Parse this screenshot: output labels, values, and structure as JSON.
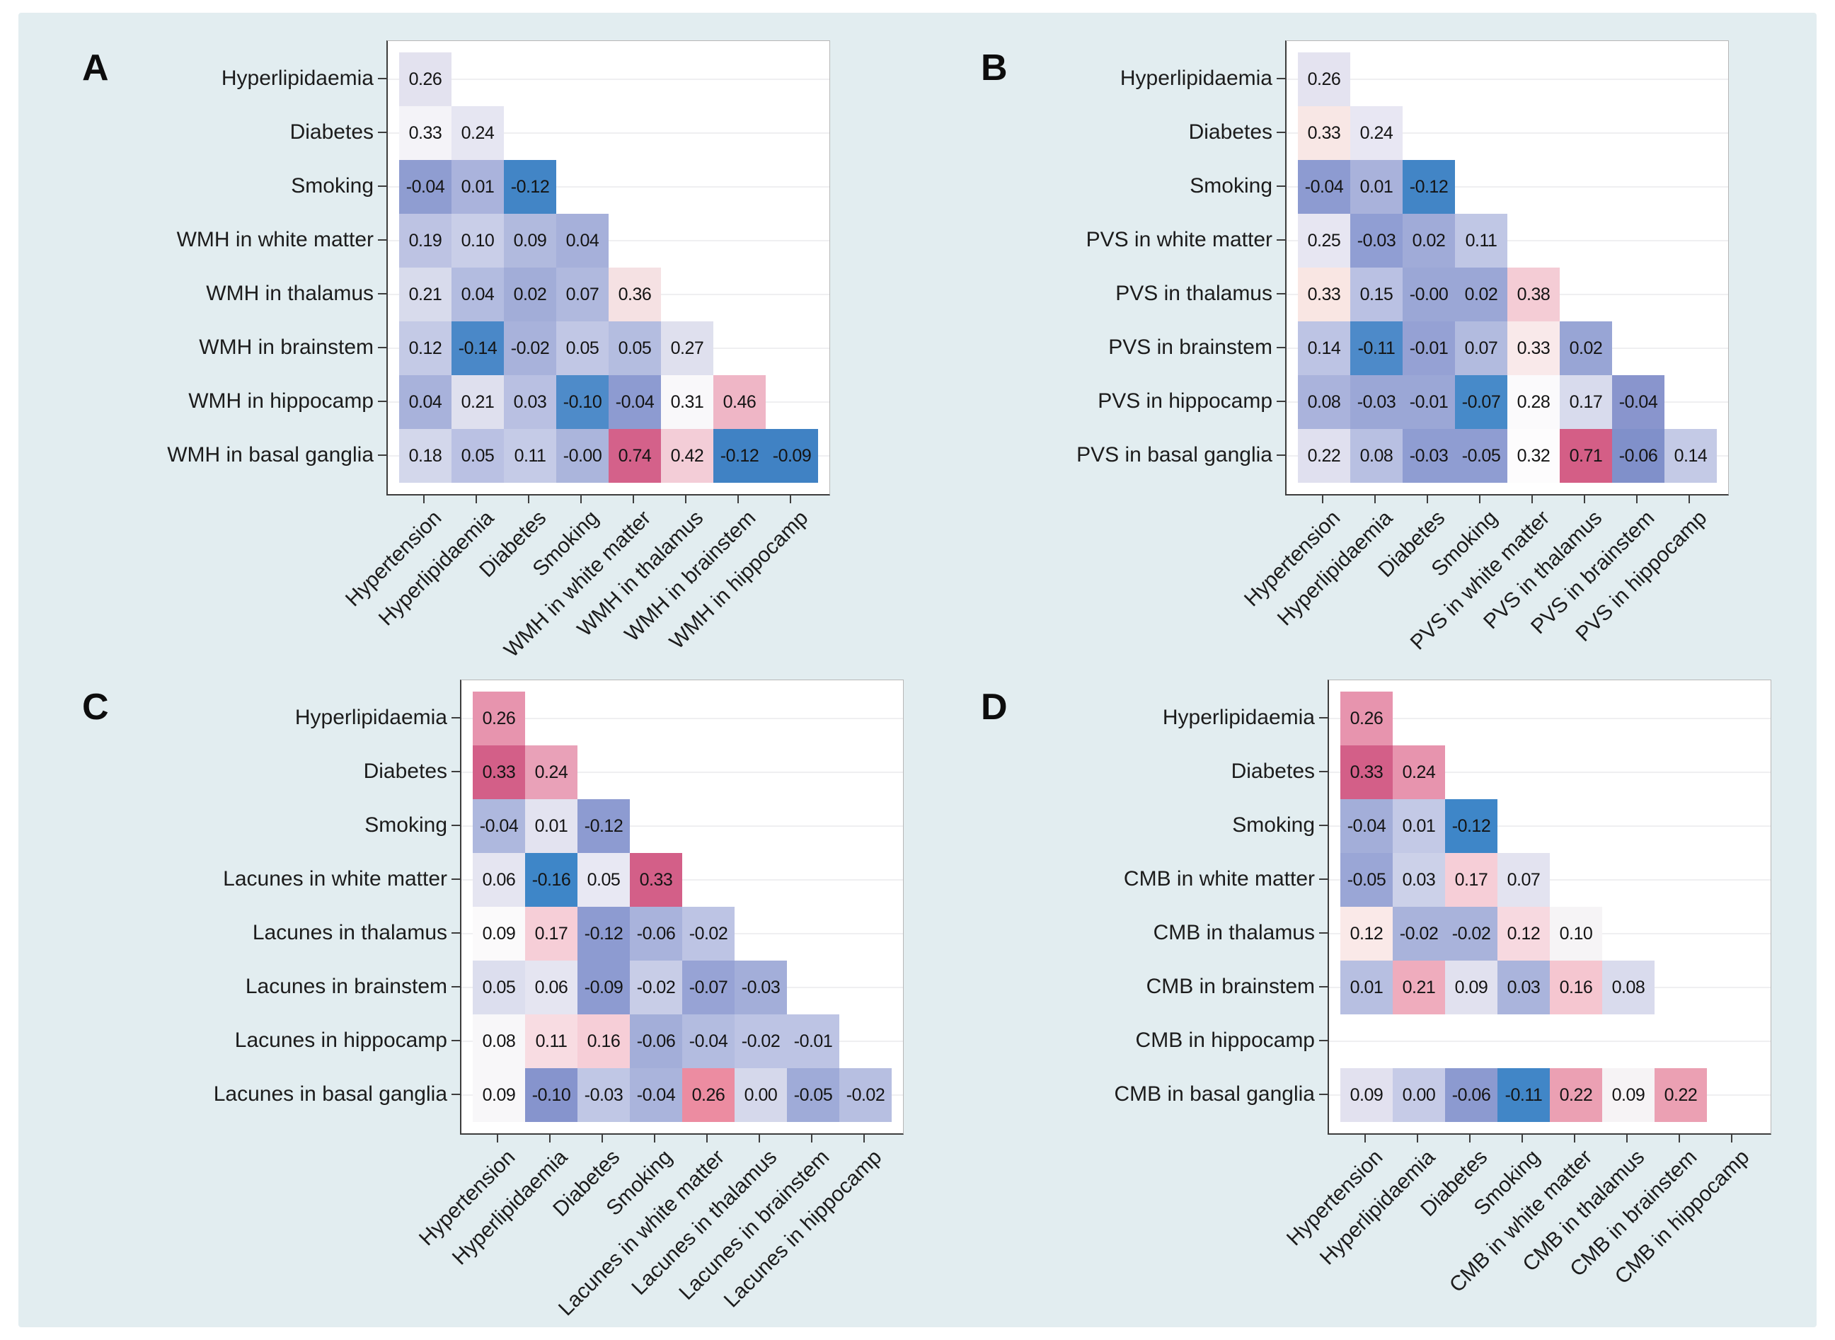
{
  "figure": {
    "background_color": "#e2edf0",
    "plot_background": "#ffffff",
    "axis_color": "#3d3d3d",
    "grid_color": "#efeff1",
    "value_text_color": "#141414",
    "negative_strong_color": "#4285c6",
    "positive_strong_color": "#d35f88"
  },
  "chart_data": [
    {
      "type": "heatmap",
      "panel": "A",
      "measure": "WMH",
      "row_labels": [
        "Hyperlipidaemia",
        "Diabetes",
        "Smoking",
        "WMH in white matter",
        "WMH in thalamus",
        "WMH in brainstem",
        "WMH in hippocamp",
        "WMH in basal ganglia"
      ],
      "col_labels": [
        "Hypertension",
        "Hyperlipidaemia",
        "Diabetes",
        "Smoking",
        "WMH in white matter",
        "WMH in thalamus",
        "WMH in brainstem",
        "WMH in hippocamp"
      ],
      "cells": [
        [
          [
            "0.26",
            "#e3e2ef"
          ]
        ],
        [
          [
            "0.33",
            "#f4f3f8"
          ],
          [
            "0.24",
            "#e6e6f2"
          ]
        ],
        [
          [
            "-0.04",
            "#8f9dd1"
          ],
          [
            "0.01",
            "#aab3dc"
          ],
          [
            "-0.12",
            "#4285c6"
          ]
        ],
        [
          [
            "0.19",
            "#bdc3e3"
          ],
          [
            "0.10",
            "#c9cee8"
          ],
          [
            "0.09",
            "#b1bade"
          ],
          [
            "0.04",
            "#a6b0da"
          ]
        ],
        [
          [
            "0.21",
            "#d8dbec"
          ],
          [
            "0.04",
            "#b3bce0"
          ],
          [
            "0.02",
            "#a2add8"
          ],
          [
            "0.07",
            "#b0b9de"
          ],
          [
            "0.36",
            "#f5e1e3"
          ]
        ],
        [
          [
            "0.12",
            "#c4cae6"
          ],
          [
            "-0.14",
            "#4a88c8"
          ],
          [
            "-0.02",
            "#a8b2db"
          ],
          [
            "0.05",
            "#c1c7e5"
          ],
          [
            "0.05",
            "#b4bde0"
          ],
          [
            "0.27",
            "#dfe0ee"
          ]
        ],
        [
          [
            "0.04",
            "#a8b2db"
          ],
          [
            "0.21",
            "#dfe0ee"
          ],
          [
            "0.03",
            "#b9c0e2"
          ],
          [
            "-0.10",
            "#4e8bc9"
          ],
          [
            "-0.04",
            "#8d9bd1"
          ],
          [
            "0.31",
            "#f9f8fa"
          ],
          [
            "0.46",
            "#efb6c6"
          ]
        ],
        [
          [
            "0.18",
            "#d3d7eb"
          ],
          [
            "0.05",
            "#bac1e3"
          ],
          [
            "0.11",
            "#c5cbe7"
          ],
          [
            "-0.00",
            "#abb5dc"
          ],
          [
            "0.74",
            "#d4618a"
          ],
          [
            "0.42",
            "#f3cdd7"
          ],
          [
            "-0.12",
            "#4082c4"
          ],
          [
            "-0.09",
            "#4082c4"
          ]
        ]
      ]
    },
    {
      "type": "heatmap",
      "panel": "B",
      "measure": "PVS",
      "row_labels": [
        "Hyperlipidaemia",
        "Diabetes",
        "Smoking",
        "PVS in white matter",
        "PVS in thalamus",
        "PVS in brainstem",
        "PVS in hippocamp",
        "PVS in basal ganglia"
      ],
      "col_labels": [
        "Hypertension",
        "Hyperlipidaemia",
        "Diabetes",
        "Smoking",
        "PVS in white matter",
        "PVS in thalamus",
        "PVS in brainstem",
        "PVS in hippocamp"
      ],
      "cells": [
        [
          [
            "0.26",
            "#e4e3f0"
          ]
        ],
        [
          [
            "0.33",
            "#f8e7e5"
          ],
          [
            "0.24",
            "#e8e7f3"
          ]
        ],
        [
          [
            "-0.04",
            "#8d9bd1"
          ],
          [
            "0.01",
            "#a9b2db"
          ],
          [
            "-0.12",
            "#4285c6"
          ]
        ],
        [
          [
            "0.25",
            "#e7e6f2"
          ],
          [
            "-0.03",
            "#909ed3"
          ],
          [
            "0.02",
            "#a0abd8"
          ],
          [
            "0.11",
            "#c0c7e5"
          ]
        ],
        [
          [
            "0.33",
            "#f9e6e3"
          ],
          [
            "0.15",
            "#bac1e3"
          ],
          [
            "-0.00",
            "#9ba7d6"
          ],
          [
            "0.02",
            "#9ba7d6"
          ],
          [
            "0.38",
            "#f4ccd5"
          ]
        ],
        [
          [
            "0.14",
            "#bdc4e4"
          ],
          [
            "-0.11",
            "#4d8ac9"
          ],
          [
            "-0.01",
            "#95a1d4"
          ],
          [
            "0.07",
            "#b2bbdf"
          ],
          [
            "0.33",
            "#f9e9ea"
          ],
          [
            "0.02",
            "#98a5d5"
          ]
        ],
        [
          [
            "0.08",
            "#aab3dc"
          ],
          [
            "-0.03",
            "#9ba7d6"
          ],
          [
            "-0.01",
            "#9ba7d6"
          ],
          [
            "-0.07",
            "#478ac9"
          ],
          [
            "0.28",
            "#fbfafc"
          ],
          [
            "0.17",
            "#d8dbed"
          ],
          [
            "-0.04",
            "#8995cd"
          ]
        ],
        [
          [
            "0.22",
            "#e0e0ef"
          ],
          [
            "0.08",
            "#b8c0e2"
          ],
          [
            "-0.03",
            "#8f9dd2"
          ],
          [
            "-0.05",
            "#8f9dd2"
          ],
          [
            "0.32",
            "#fdfcfd"
          ],
          [
            "0.71",
            "#d45e86"
          ],
          [
            "-0.06",
            "#8090ca"
          ],
          [
            "0.14",
            "#c4cae6"
          ]
        ]
      ]
    },
    {
      "type": "heatmap",
      "panel": "C",
      "measure": "Lacunes",
      "row_labels": [
        "Hyperlipidaemia",
        "Diabetes",
        "Smoking",
        "Lacunes in white matter",
        "Lacunes in thalamus",
        "Lacunes in brainstem",
        "Lacunes in hippocamp",
        "Lacunes in basal ganglia"
      ],
      "col_labels": [
        "Hypertension",
        "Hyperlipidaemia",
        "Diabetes",
        "Smoking",
        "Lacunes in white matter",
        "Lacunes in thalamus",
        "Lacunes in brainstem",
        "Lacunes in hippocamp"
      ],
      "cells": [
        [
          [
            "0.26",
            "#e794ae"
          ]
        ],
        [
          [
            "0.33",
            "#d35f88"
          ],
          [
            "0.24",
            "#e9a1b8"
          ]
        ],
        [
          [
            "-0.04",
            "#aeb8de"
          ],
          [
            "0.01",
            "#e3e3f0"
          ],
          [
            "-0.12",
            "#8d9bd1"
          ]
        ],
        [
          [
            "0.06",
            "#e5e5f1"
          ],
          [
            "-0.16",
            "#3e86c8"
          ],
          [
            "0.05",
            "#e8e8f3"
          ],
          [
            "0.33",
            "#d35f88"
          ]
        ],
        [
          [
            "0.09",
            "#fbfafb"
          ],
          [
            "0.17",
            "#f6ced7"
          ],
          [
            "-0.12",
            "#8d9bd1"
          ],
          [
            "-0.06",
            "#a9b3dc"
          ],
          [
            "-0.02",
            "#bdc4e4"
          ]
        ],
        [
          [
            "0.05",
            "#dcdeee"
          ],
          [
            "0.06",
            "#e5e5f1"
          ],
          [
            "-0.09",
            "#8d9bd1"
          ],
          [
            "-0.02",
            "#c8cde7"
          ],
          [
            "-0.07",
            "#97a3d5"
          ],
          [
            "-0.03",
            "#a3aed9"
          ]
        ],
        [
          [
            "0.08",
            "#f8f7f9"
          ],
          [
            "0.11",
            "#f8dce2"
          ],
          [
            "0.16",
            "#f6ced7"
          ],
          [
            "-0.06",
            "#a3aed9"
          ],
          [
            "-0.04",
            "#b3bce0"
          ],
          [
            "-0.02",
            "#bdc4e4"
          ],
          [
            "-0.01",
            "#bdc4e4"
          ]
        ],
        [
          [
            "0.09",
            "#f8f7f9"
          ],
          [
            "-0.10",
            "#8694cd"
          ],
          [
            "-0.03",
            "#c0c7e5"
          ],
          [
            "-0.04",
            "#aab4dc"
          ],
          [
            "0.26",
            "#ec8ca1"
          ],
          [
            "0.00",
            "#d5d8eb"
          ],
          [
            "-0.05",
            "#9fabd8"
          ],
          [
            "-0.02",
            "#b7bfe1"
          ]
        ]
      ]
    },
    {
      "type": "heatmap",
      "panel": "D",
      "measure": "CMB",
      "row_labels": [
        "Hyperlipidaemia",
        "Diabetes",
        "Smoking",
        "CMB in white matter",
        "CMB in thalamus",
        "CMB in brainstem",
        "CMB in hippocamp",
        "CMB in basal ganglia"
      ],
      "col_labels": [
        "Hypertension",
        "Hyperlipidaemia",
        "Diabetes",
        "Smoking",
        "CMB in white matter",
        "CMB in thalamus",
        "CMB in brainstem",
        "CMB in hippocamp"
      ],
      "cells": [
        [
          [
            "0.26",
            "#e794ae"
          ]
        ],
        [
          [
            "0.33",
            "#d35f88"
          ],
          [
            "0.24",
            "#e794ae"
          ]
        ],
        [
          [
            "-0.04",
            "#a3aed9"
          ],
          [
            "0.01",
            "#c3c9e6"
          ],
          [
            "-0.12",
            "#3e86c8"
          ]
        ],
        [
          [
            "-0.05",
            "#9aa6d6"
          ],
          [
            "0.03",
            "#ccd1e9"
          ],
          [
            "0.17",
            "#f6ced7"
          ],
          [
            "0.07",
            "#e3e3f0"
          ]
        ],
        [
          [
            "0.12",
            "#fae9e8"
          ],
          [
            "-0.02",
            "#a9b3db"
          ],
          [
            "-0.02",
            "#a9b3db"
          ],
          [
            "0.12",
            "#f7d9e0"
          ],
          [
            "0.10",
            "#f6f4f6"
          ]
        ],
        [
          [
            "0.01",
            "#b7bfe1"
          ],
          [
            "0.21",
            "#efacbd"
          ],
          [
            "0.09",
            "#e1e1ef"
          ],
          [
            "0.03",
            "#aab4dc"
          ],
          [
            "0.16",
            "#f5c6d0"
          ],
          [
            "0.08",
            "#d9dbed"
          ]
        ],
        [],
        [
          [
            "0.09",
            "#e2e1ef"
          ],
          [
            "0.00",
            "#c6cbe7"
          ],
          [
            "-0.06",
            "#8c9ad0"
          ],
          [
            "-0.11",
            "#4186c7"
          ],
          [
            "0.22",
            "#eba0b3"
          ],
          [
            "0.09",
            "#f6f3f5"
          ],
          [
            "0.22",
            "#eba0b3"
          ]
        ]
      ]
    }
  ]
}
